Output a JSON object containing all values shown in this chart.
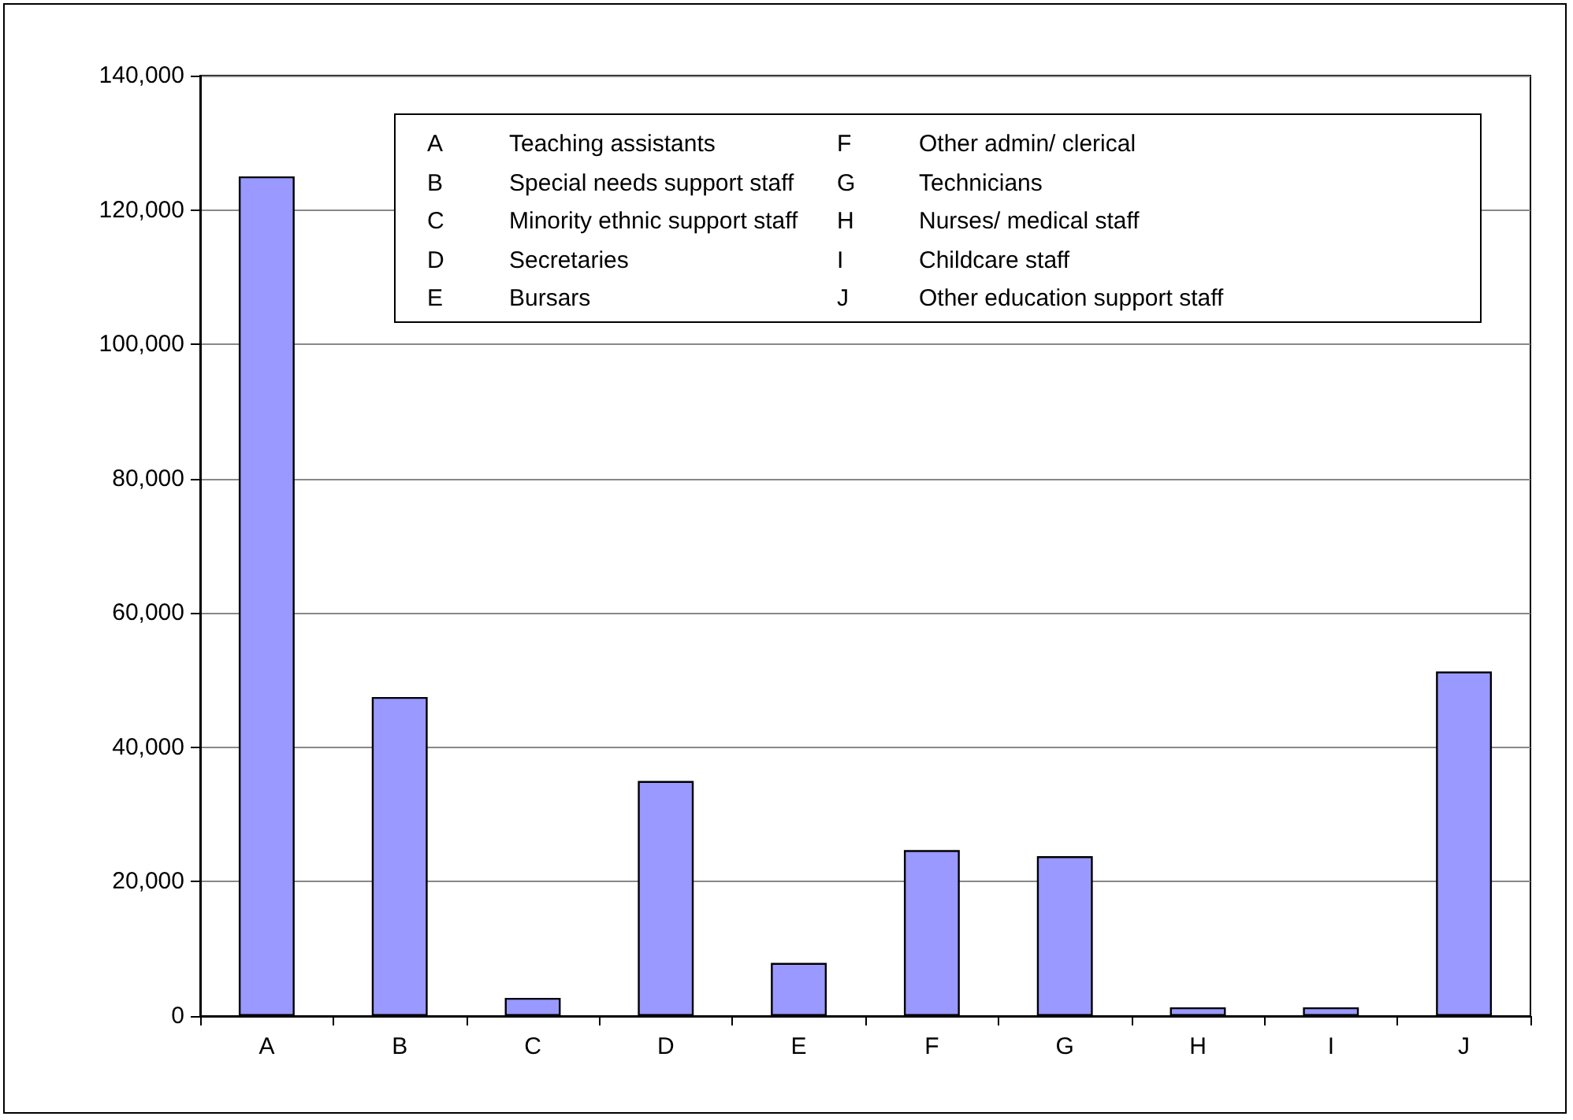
{
  "chart_data": {
    "type": "bar",
    "categories": [
      "A",
      "B",
      "C",
      "D",
      "E",
      "F",
      "G",
      "H",
      "I",
      "J"
    ],
    "values": [
      125000,
      47500,
      2700,
      35000,
      7900,
      24700,
      23800,
      1300,
      1300,
      51300
    ],
    "color": "#9999ff",
    "ylim": [
      0,
      140000
    ],
    "yticks": [
      0,
      {
        "value": 20000,
        "label": "20,000"
      },
      {
        "value": 40000,
        "label": "40,000"
      },
      {
        "value": 60000,
        "label": "60,000"
      },
      {
        "value": 80000,
        "label": "80,000"
      },
      {
        "value": 100000,
        "label": "100,000"
      },
      {
        "value": 120000,
        "label": "120,000"
      },
      {
        "value": 140000,
        "label": "140,000"
      }
    ],
    "grid": "y",
    "annotations": [
      "A Teaching assistants",
      "B Special needs support staff",
      "C Minority ethnic support staff",
      "D Secretaries",
      "E Bursars",
      "F Other admin/ clerical",
      "G Technicians",
      "H Nurses/ medical staff",
      "I Childcare staff",
      "J Other education support staff"
    ]
  }
}
